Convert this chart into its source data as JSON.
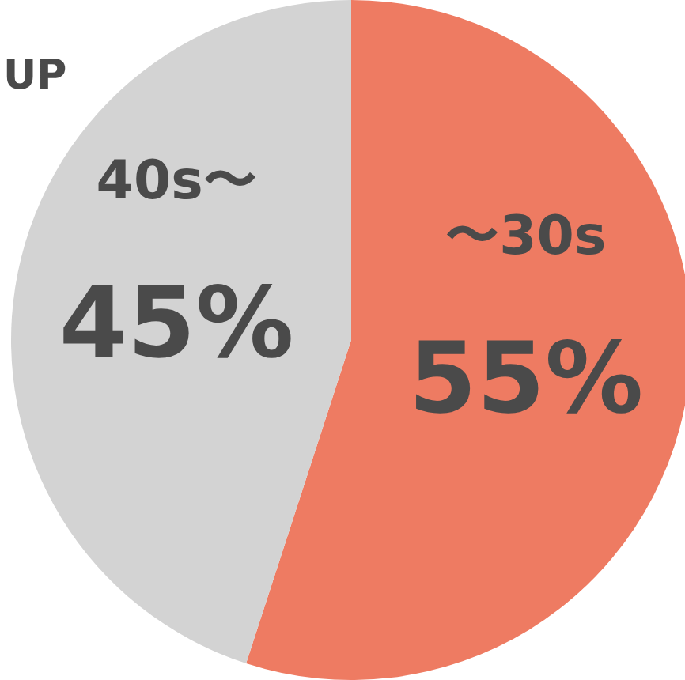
{
  "chart_data": {
    "type": "pie",
    "title": "UP",
    "categories": [
      "〜30s",
      "40s〜"
    ],
    "values": [
      55,
      45
    ],
    "colors": [
      "#ee7b62",
      "#d3d3d3"
    ],
    "value_labels": [
      "55%",
      "45%"
    ],
    "legend": false
  }
}
